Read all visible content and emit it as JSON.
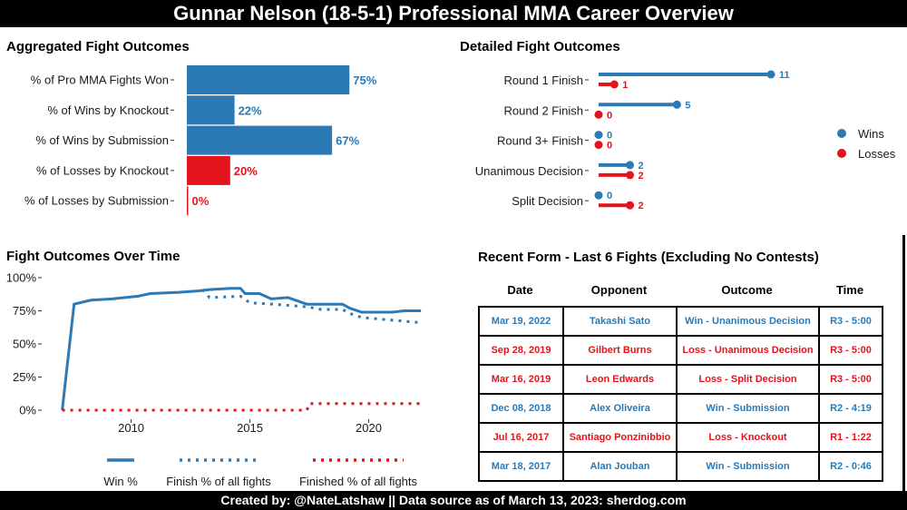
{
  "title": "Gunnar Nelson (18-5-1) Professional MMA Career Overview",
  "footer": "Created by: @NateLatshaw || Data source as of March 13, 2023: sherdog.com",
  "colors": {
    "win": "#2b79b5",
    "loss": "#e3141b"
  },
  "panels": {
    "aggregated": "Aggregated Fight Outcomes",
    "detailed": "Detailed Fight Outcomes",
    "over_time": "Fight Outcomes Over Time",
    "recent": "Recent Form - Last 6 Fights (Excluding No Contests)"
  },
  "chart_data": [
    {
      "type": "bar",
      "orientation": "horizontal",
      "title": "Aggregated Fight Outcomes",
      "categories": [
        "% of Pro MMA Fights Won",
        "% of Wins by Knockout",
        "% of Wins by Submission",
        "% of Losses by Knockout",
        "% of Losses by Submission"
      ],
      "values": [
        75,
        22,
        67,
        20,
        0
      ],
      "labels": [
        "75%",
        "22%",
        "67%",
        "20%",
        "0%"
      ],
      "kinds": [
        "win",
        "win",
        "win",
        "loss",
        "loss"
      ],
      "xlim": [
        0,
        100
      ]
    },
    {
      "type": "bar",
      "style": "lollipop",
      "title": "Detailed Fight Outcomes",
      "categories": [
        "Round 1 Finish",
        "Round 2 Finish",
        "Round 3+ Finish",
        "Unanimous Decision",
        "Split Decision"
      ],
      "series": [
        {
          "name": "Wins",
          "values": [
            11,
            5,
            0,
            2,
            0
          ]
        },
        {
          "name": "Losses",
          "values": [
            1,
            0,
            0,
            2,
            2
          ]
        }
      ],
      "xlim": [
        0,
        11
      ],
      "legend": "right"
    },
    {
      "type": "line",
      "title": "Fight Outcomes Over Time",
      "xlabel": "",
      "ylabel": "",
      "xticks": [
        2010,
        2015,
        2020
      ],
      "yticks": [
        "0%",
        "25%",
        "50%",
        "75%",
        "100%"
      ],
      "xlim": [
        2007.0,
        2022.5
      ],
      "ylim": [
        0,
        100
      ],
      "legend_position": "bottom",
      "series": [
        {
          "name": "Win %",
          "style": "solid",
          "color": "#2b79b5",
          "points": [
            [
              2007.1,
              0
            ],
            [
              2007.6,
              80
            ],
            [
              2008.3,
              83
            ],
            [
              2009.2,
              84
            ],
            [
              2010.3,
              86
            ],
            [
              2010.8,
              88
            ],
            [
              2012.0,
              89
            ],
            [
              2012.8,
              90
            ],
            [
              2013.3,
              91
            ],
            [
              2014.2,
              92
            ],
            [
              2014.6,
              92
            ],
            [
              2014.8,
              88
            ],
            [
              2015.4,
              88
            ],
            [
              2015.9,
              84
            ],
            [
              2016.6,
              85
            ],
            [
              2017.4,
              80
            ],
            [
              2017.5,
              80
            ],
            [
              2018.2,
              80
            ],
            [
              2018.9,
              80
            ],
            [
              2019.2,
              77
            ],
            [
              2019.7,
              74
            ],
            [
              2021.0,
              74
            ],
            [
              2021.5,
              75
            ],
            [
              2022.2,
              75
            ]
          ]
        },
        {
          "name": "Finish % of all fights",
          "style": "dotted",
          "color": "#2b79b5",
          "points": [
            [
              2013.0,
              91
            ],
            [
              2013.3,
              85
            ],
            [
              2014.6,
              86
            ],
            [
              2015.0,
              81
            ],
            [
              2016.0,
              80
            ],
            [
              2017.4,
              78
            ],
            [
              2018.0,
              76
            ],
            [
              2018.9,
              76
            ],
            [
              2019.2,
              73
            ],
            [
              2019.7,
              70
            ],
            [
              2022.2,
              66
            ]
          ]
        },
        {
          "name": "Finished % of all fights",
          "style": "dotted",
          "color": "#e3141b",
          "points": [
            [
              2007.1,
              0
            ],
            [
              2017.4,
              0
            ],
            [
              2017.5,
              5
            ],
            [
              2022.2,
              5
            ]
          ]
        }
      ]
    }
  ],
  "recent_form": {
    "headers": [
      "Date",
      "Opponent",
      "Outcome",
      "Time"
    ],
    "rows": [
      {
        "result": "win",
        "date": "Mar  19, 2022",
        "opponent": "Takashi Sato",
        "outcome": "Win - Unanimous Decision",
        "time": "R3 - 5:00"
      },
      {
        "result": "loss",
        "date": "Sep  28, 2019",
        "opponent": "Gilbert Burns",
        "outcome": "Loss - Unanimous Decision",
        "time": "R3 - 5:00"
      },
      {
        "result": "loss",
        "date": "Mar  16, 2019",
        "opponent": "Leon Edwards",
        "outcome": "Loss - Split Decision",
        "time": "R3 - 5:00"
      },
      {
        "result": "win",
        "date": "Dec  08, 2018",
        "opponent": "Alex Oliveira",
        "outcome": "Win - Submission",
        "time": "R2 - 4:19"
      },
      {
        "result": "loss",
        "date": "Jul  16, 2017",
        "opponent": "Santiago Ponzinibbio",
        "outcome": "Loss - Knockout",
        "time": "R1 - 1:22"
      },
      {
        "result": "win",
        "date": "Mar  18, 2017",
        "opponent": "Alan Jouban",
        "outcome": "Win - Submission",
        "time": "R2 - 0:46"
      }
    ]
  }
}
